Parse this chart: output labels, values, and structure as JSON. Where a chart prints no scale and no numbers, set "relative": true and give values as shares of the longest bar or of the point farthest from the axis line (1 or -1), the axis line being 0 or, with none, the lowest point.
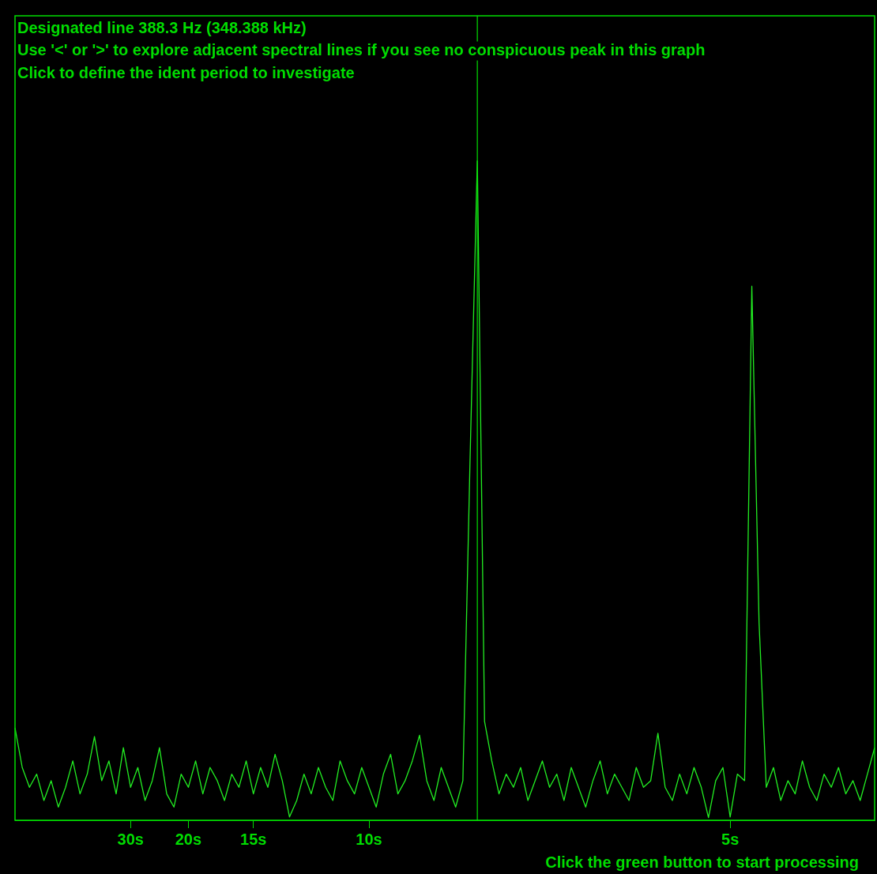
{
  "chart_data": {
    "type": "line",
    "relative": true,
    "title": "Designated line 388.3 Hz (348.388 kHz)",
    "subtitle": "Use '<' or '>' to explore adjacent spectral lines if you see no conspicuous peak in this graph",
    "annotations": [
      "Click to define the ident period to investigate",
      "Click the green button to start processing"
    ],
    "categories": [
      null,
      null,
      null,
      null,
      null,
      null,
      null,
      null,
      null,
      null,
      null,
      null,
      null,
      null,
      null,
      null,
      "30s",
      null,
      null,
      null,
      null,
      null,
      null,
      null,
      "20s",
      null,
      null,
      null,
      null,
      null,
      null,
      null,
      null,
      "15s",
      null,
      null,
      null,
      null,
      null,
      null,
      null,
      null,
      null,
      null,
      null,
      null,
      null,
      null,
      null,
      "10s",
      null,
      null,
      null,
      null,
      null,
      null,
      null,
      null,
      null,
      null,
      null,
      null,
      null,
      null,
      null,
      null,
      null,
      null,
      null,
      null,
      null,
      null,
      null,
      null,
      null,
      null,
      null,
      null,
      null,
      null,
      null,
      null,
      null,
      null,
      null,
      null,
      null,
      null,
      null,
      null,
      null,
      null,
      null,
      null,
      null,
      null,
      null,
      null,
      null,
      "5s",
      null,
      null,
      null,
      null,
      null,
      null,
      null,
      null,
      null,
      null,
      null,
      null,
      null,
      null,
      null,
      null,
      null,
      null,
      null,
      null
    ],
    "ref_lines": [
      {
        "axis": "x",
        "color": "#00e000"
      }
    ],
    "series": [
      {
        "color": "#22ee22",
        "values": [
          0.14,
          0.08,
          0.05,
          0.07,
          0.03,
          0.06,
          0.02,
          0.05,
          0.09,
          0.04,
          0.07,
          0.127,
          0.06,
          0.09,
          0.04,
          0.11,
          0.05,
          0.08,
          0.03,
          0.06,
          0.11,
          0.04,
          0.02,
          0.07,
          0.05,
          0.09,
          0.04,
          0.08,
          0.06,
          0.03,
          0.07,
          0.05,
          0.09,
          0.04,
          0.08,
          0.05,
          0.1,
          0.06,
          0.005,
          0.03,
          0.07,
          0.04,
          0.08,
          0.05,
          0.03,
          0.09,
          0.06,
          0.04,
          0.08,
          0.05,
          0.02,
          0.07,
          0.1,
          0.04,
          0.06,
          0.09,
          0.129,
          0.06,
          0.03,
          0.08,
          0.05,
          0.02,
          0.06,
          0.55,
          1,
          0.15,
          0.09,
          0.04,
          0.07,
          0.05,
          0.08,
          0.03,
          0.06,
          0.09,
          0.05,
          0.07,
          0.03,
          0.08,
          0.05,
          0.02,
          0.06,
          0.09,
          0.04,
          0.07,
          0.05,
          0.03,
          0.08,
          0.05,
          0.06,
          0.132,
          0.05,
          0.03,
          0.07,
          0.04,
          0.08,
          0.05,
          0.004,
          0.06,
          0.08,
          0.005,
          0.07,
          0.06,
          0.81,
          0.3,
          0.05,
          0.08,
          0.03,
          0.06,
          0.04,
          0.09,
          0.05,
          0.03,
          0.07,
          0.05,
          0.08,
          0.04,
          0.06,
          0.03,
          0.07,
          0.11
        ]
      }
    ]
  }
}
